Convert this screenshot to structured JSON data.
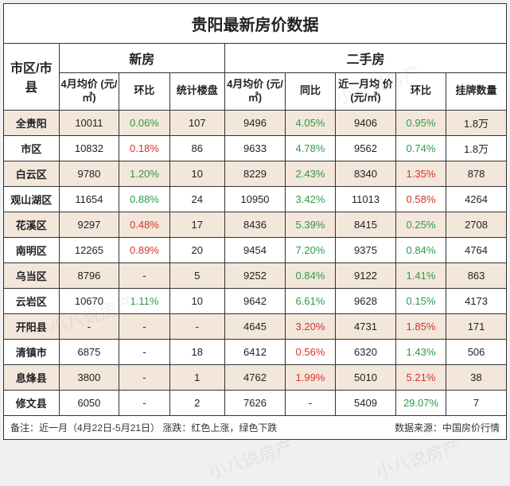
{
  "title": "贵阳最新房价数据",
  "columns": {
    "region": "市区/市县",
    "group_new": "新房",
    "group_second": "二手房",
    "new_avg": "4月均价\n(元/㎡)",
    "new_mom": "环比",
    "new_count": "统计楼盘",
    "sec_avg": "4月均价\n(元/㎡)",
    "sec_yoy": "同比",
    "sec_month_avg": "近一月均\n价(元/㎡)",
    "sec_mom": "环比",
    "sec_listings": "挂牌数量"
  },
  "colors": {
    "up": "#d9322b",
    "down": "#2e9a4a",
    "border": "#333333",
    "row_odd_bg": "#f2e7da",
    "row_even_bg": "#ffffff",
    "text": "#222222"
  },
  "col_widths_pct": [
    11,
    12,
    10,
    11,
    12,
    10,
    12,
    10,
    12
  ],
  "rows": [
    {
      "region": "全贵阳",
      "new_avg": "10011",
      "new_mom": "0.06%",
      "new_mom_dir": "down",
      "new_count": "107",
      "sec_avg": "9496",
      "sec_yoy": "4.05%",
      "sec_yoy_dir": "down",
      "sec_month_avg": "9406",
      "sec_mom": "0.95%",
      "sec_mom_dir": "down",
      "sec_listings": "1.8万"
    },
    {
      "region": "市区",
      "new_avg": "10832",
      "new_mom": "0.18%",
      "new_mom_dir": "up",
      "new_count": "86",
      "sec_avg": "9633",
      "sec_yoy": "4.78%",
      "sec_yoy_dir": "down",
      "sec_month_avg": "9562",
      "sec_mom": "0.74%",
      "sec_mom_dir": "down",
      "sec_listings": "1.8万"
    },
    {
      "region": "白云区",
      "new_avg": "9780",
      "new_mom": "1.20%",
      "new_mom_dir": "down",
      "new_count": "10",
      "sec_avg": "8229",
      "sec_yoy": "2.43%",
      "sec_yoy_dir": "down",
      "sec_month_avg": "8340",
      "sec_mom": "1.35%",
      "sec_mom_dir": "up",
      "sec_listings": "878"
    },
    {
      "region": "观山湖区",
      "new_avg": "11654",
      "new_mom": "0.88%",
      "new_mom_dir": "down",
      "new_count": "24",
      "sec_avg": "10950",
      "sec_yoy": "3.42%",
      "sec_yoy_dir": "down",
      "sec_month_avg": "11013",
      "sec_mom": "0.58%",
      "sec_mom_dir": "up",
      "sec_listings": "4264"
    },
    {
      "region": "花溪区",
      "new_avg": "9297",
      "new_mom": "0.48%",
      "new_mom_dir": "up",
      "new_count": "17",
      "sec_avg": "8436",
      "sec_yoy": "5.39%",
      "sec_yoy_dir": "down",
      "sec_month_avg": "8415",
      "sec_mom": "0.25%",
      "sec_mom_dir": "down",
      "sec_listings": "2708"
    },
    {
      "region": "南明区",
      "new_avg": "12265",
      "new_mom": "0.89%",
      "new_mom_dir": "up",
      "new_count": "20",
      "sec_avg": "9454",
      "sec_yoy": "7.20%",
      "sec_yoy_dir": "down",
      "sec_month_avg": "9375",
      "sec_mom": "0.84%",
      "sec_mom_dir": "down",
      "sec_listings": "4764"
    },
    {
      "region": "乌当区",
      "new_avg": "8796",
      "new_mom": "-",
      "new_mom_dir": null,
      "new_count": "5",
      "sec_avg": "9252",
      "sec_yoy": "0.84%",
      "sec_yoy_dir": "down",
      "sec_month_avg": "9122",
      "sec_mom": "1.41%",
      "sec_mom_dir": "down",
      "sec_listings": "863"
    },
    {
      "region": "云岩区",
      "new_avg": "10670",
      "new_mom": "1.11%",
      "new_mom_dir": "down",
      "new_count": "10",
      "sec_avg": "9642",
      "sec_yoy": "6.61%",
      "sec_yoy_dir": "down",
      "sec_month_avg": "9628",
      "sec_mom": "0.15%",
      "sec_mom_dir": "down",
      "sec_listings": "4173"
    },
    {
      "region": "开阳县",
      "new_avg": "-",
      "new_mom": "-",
      "new_mom_dir": null,
      "new_count": "-",
      "sec_avg": "4645",
      "sec_yoy": "3.20%",
      "sec_yoy_dir": "up",
      "sec_month_avg": "4731",
      "sec_mom": "1.85%",
      "sec_mom_dir": "up",
      "sec_listings": "171"
    },
    {
      "region": "清镇市",
      "new_avg": "6875",
      "new_mom": "-",
      "new_mom_dir": null,
      "new_count": "18",
      "sec_avg": "6412",
      "sec_yoy": "0.56%",
      "sec_yoy_dir": "up",
      "sec_month_avg": "6320",
      "sec_mom": "1.43%",
      "sec_mom_dir": "down",
      "sec_listings": "506"
    },
    {
      "region": "息烽县",
      "new_avg": "3800",
      "new_mom": "-",
      "new_mom_dir": null,
      "new_count": "1",
      "sec_avg": "4762",
      "sec_yoy": "1.99%",
      "sec_yoy_dir": "up",
      "sec_month_avg": "5010",
      "sec_mom": "5.21%",
      "sec_mom_dir": "up",
      "sec_listings": "38"
    },
    {
      "region": "修文县",
      "new_avg": "6050",
      "new_mom": "-",
      "new_mom_dir": null,
      "new_count": "2",
      "sec_avg": "7626",
      "sec_yoy": "-",
      "sec_yoy_dir": null,
      "sec_month_avg": "5409",
      "sec_mom": "29.07%",
      "sec_mom_dir": "down",
      "sec_listings": "7"
    }
  ],
  "footnote": {
    "left": "备注：近一月（4月22日-5月21日）  涨跌：红色上涨，绿色下跌",
    "right": "数据来源：中国房价行情"
  },
  "watermark_text": "小八说房产"
}
